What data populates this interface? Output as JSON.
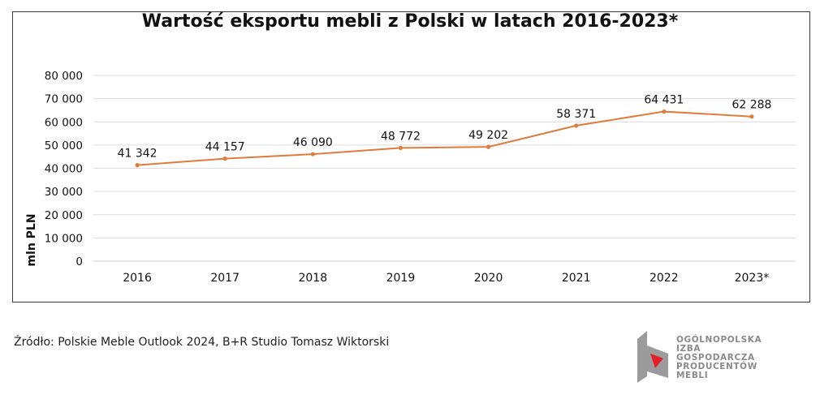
{
  "chart_data": {
    "type": "line",
    "title": "Wartość eksportu mebli z Polski w latach 2016-2023*",
    "xlabel": "",
    "ylabel": "mln PLN",
    "categories": [
      "2016",
      "2017",
      "2018",
      "2019",
      "2020",
      "2021",
      "2022",
      "2023*"
    ],
    "series": [
      {
        "name": "Wartość eksportu mebli",
        "values": [
          41342,
          44157,
          46090,
          48772,
          49202,
          58371,
          64431,
          62288
        ],
        "labels": [
          "41 342",
          "44 157",
          "46 090",
          "48 772",
          "49 202",
          "58 371",
          "64 431",
          "62 288"
        ],
        "color": "#e07b39"
      }
    ],
    "ylim": [
      0,
      80000
    ],
    "yticks": [
      0,
      10000,
      20000,
      30000,
      40000,
      50000,
      60000,
      70000,
      80000
    ],
    "ytick_labels": [
      "0",
      "10 000",
      "20 000",
      "30 000",
      "40 000",
      "50 000",
      "60 000",
      "70 000",
      "80 000"
    ],
    "grid": true,
    "legend": "none"
  },
  "footer": {
    "source": "Źródło: Polskie Meble Outlook 2024, B+R Studio Tomasz Wiktorski"
  },
  "logo": {
    "lines": [
      "OGÓLNOPOLSKA",
      "IZBA",
      "GOSPODARCZA",
      "PRODUCENTÓW",
      "MEBLI"
    ],
    "gray": "#9b9b9b",
    "red": "#e31e24"
  }
}
